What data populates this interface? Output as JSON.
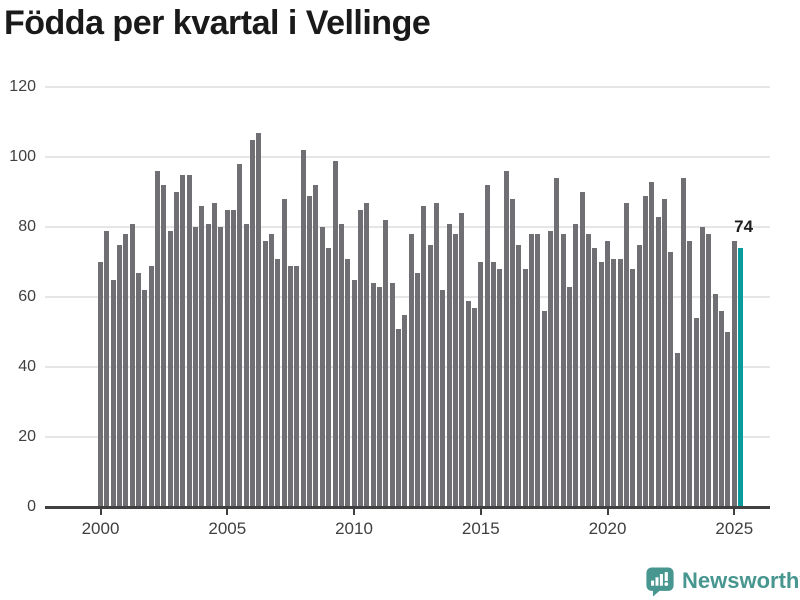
{
  "title": "Födda per kvartal i Vellinge",
  "footer": {
    "brand": "Newsworthy",
    "logo_icon": "speech-bubble-bar-chart-icon"
  },
  "colors": {
    "background": "#ffffff",
    "bar": "#6f6f74",
    "highlight": "#089b9b",
    "grid": "#e6e6e6",
    "axis": "#404040",
    "tick_text": "#404040",
    "title_text": "#1a1a1a",
    "brand": "#47968f"
  },
  "chart_data": {
    "type": "bar",
    "title": "Födda per kvartal i Vellinge",
    "xlabel": "",
    "ylabel": "",
    "x_start": "2000-Q1",
    "x_end": "2025-Q2",
    "frequency": "quarterly",
    "categories": [
      "2000Q1",
      "2000Q2",
      "2000Q3",
      "2000Q4",
      "2001Q1",
      "2001Q2",
      "2001Q3",
      "2001Q4",
      "2002Q1",
      "2002Q2",
      "2002Q3",
      "2002Q4",
      "2003Q1",
      "2003Q2",
      "2003Q3",
      "2003Q4",
      "2004Q1",
      "2004Q2",
      "2004Q3",
      "2004Q4",
      "2005Q1",
      "2005Q2",
      "2005Q3",
      "2005Q4",
      "2006Q1",
      "2006Q2",
      "2006Q3",
      "2006Q4",
      "2007Q1",
      "2007Q2",
      "2007Q3",
      "2007Q4",
      "2008Q1",
      "2008Q2",
      "2008Q3",
      "2008Q4",
      "2009Q1",
      "2009Q2",
      "2009Q3",
      "2009Q4",
      "2010Q1",
      "2010Q2",
      "2010Q3",
      "2010Q4",
      "2011Q1",
      "2011Q2",
      "2011Q3",
      "2011Q4",
      "2012Q1",
      "2012Q2",
      "2012Q3",
      "2012Q4",
      "2013Q1",
      "2013Q2",
      "2013Q3",
      "2013Q4",
      "2014Q1",
      "2014Q2",
      "2014Q3",
      "2014Q4",
      "2015Q1",
      "2015Q2",
      "2015Q3",
      "2015Q4",
      "2016Q1",
      "2016Q2",
      "2016Q3",
      "2016Q4",
      "2017Q1",
      "2017Q2",
      "2017Q3",
      "2017Q4",
      "2018Q1",
      "2018Q2",
      "2018Q3",
      "2018Q4",
      "2019Q1",
      "2019Q2",
      "2019Q3",
      "2019Q4",
      "2020Q1",
      "2020Q2",
      "2020Q3",
      "2020Q4",
      "2021Q1",
      "2021Q2",
      "2021Q3",
      "2021Q4",
      "2022Q1",
      "2022Q2",
      "2022Q3",
      "2022Q4",
      "2023Q1",
      "2023Q2",
      "2023Q3",
      "2023Q4",
      "2024Q1",
      "2024Q2",
      "2024Q3",
      "2024Q4",
      "2025Q1",
      "2025Q2"
    ],
    "values": [
      70,
      79,
      65,
      75,
      78,
      81,
      67,
      62,
      69,
      96,
      92,
      79,
      90,
      95,
      95,
      80,
      86,
      81,
      87,
      80,
      85,
      85,
      98,
      81,
      105,
      107,
      76,
      78,
      71,
      88,
      69,
      69,
      102,
      89,
      92,
      80,
      74,
      99,
      81,
      71,
      65,
      85,
      87,
      64,
      63,
      82,
      64,
      51,
      55,
      78,
      67,
      86,
      75,
      87,
      62,
      81,
      78,
      84,
      59,
      57,
      70,
      92,
      70,
      68,
      96,
      88,
      75,
      68,
      78,
      78,
      56,
      79,
      94,
      78,
      63,
      81,
      90,
      78,
      74,
      70,
      76,
      71,
      71,
      87,
      68,
      75,
      89,
      93,
      83,
      88,
      73,
      44,
      94,
      76,
      54,
      80,
      78,
      61,
      56,
      50,
      76,
      74
    ],
    "highlight_index": 101,
    "annotation": {
      "label": "74",
      "target": "2025Q2"
    },
    "ylim": [
      0,
      120
    ],
    "yticks": [
      0,
      20,
      40,
      60,
      80,
      100,
      120
    ],
    "xticks": [
      2000,
      2005,
      2010,
      2015,
      2020,
      2025
    ],
    "grid": "horizontal",
    "legend": "none"
  }
}
